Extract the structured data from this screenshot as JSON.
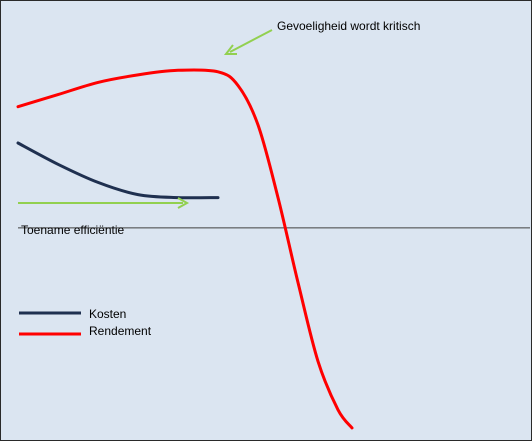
{
  "chart_data": {
    "type": "line",
    "title": "",
    "xlabel": "",
    "ylabel": "",
    "grid": false,
    "legend_position": "bottom-left",
    "series": [
      {
        "name": "Kosten",
        "color": "#1f3050",
        "points": [
          [
            0,
            0.66
          ],
          [
            1,
            0.59
          ],
          [
            2,
            0.53
          ],
          [
            3,
            0.49
          ],
          [
            4,
            0.48
          ],
          [
            5,
            0.48
          ]
        ]
      },
      {
        "name": "Rendement",
        "color": "#ff0000",
        "points": [
          [
            0,
            0.78
          ],
          [
            1,
            0.82
          ],
          [
            2,
            0.86
          ],
          [
            3,
            0.885
          ],
          [
            4,
            0.9
          ],
          [
            5,
            0.895
          ],
          [
            5.5,
            0.85
          ],
          [
            6,
            0.72
          ],
          [
            6.5,
            0.48
          ],
          [
            7,
            0.2
          ],
          [
            7.5,
            -0.06
          ],
          [
            8,
            -0.22
          ],
          [
            8.35,
            -0.28
          ]
        ]
      }
    ],
    "baseline": 0.38,
    "xlim": [
      0,
      12.8
    ],
    "ylim": [
      -0.3,
      1.0
    ],
    "annotations": {
      "efficiency_label": "Toename efficiëntie",
      "sensitivity_label": "Gevoeligheid wordt kritisch"
    },
    "legend": [
      {
        "label": "Kosten",
        "color": "#1f3050"
      },
      {
        "label": "Rendement",
        "color": "#ff0000"
      }
    ],
    "colors": {
      "background": "#dbe5f1",
      "arrow": "#92d050",
      "baseline": "#404040"
    }
  }
}
